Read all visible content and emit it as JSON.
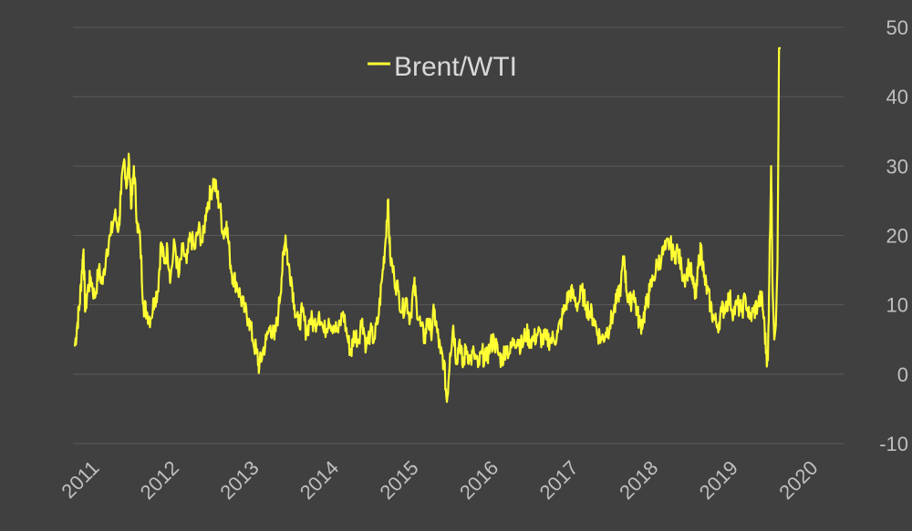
{
  "chart_data": {
    "type": "line",
    "title": "",
    "xlabel": "",
    "ylabel": "",
    "legend": {
      "position": "top-center",
      "entries": [
        "Brent/WTI"
      ]
    },
    "ylim": [
      -10,
      50
    ],
    "y_ticks": [
      "50",
      "40",
      "30",
      "20",
      "10",
      "0",
      "-10"
    ],
    "y_axis_side": "right",
    "grid": "horizontal",
    "x_ticks": [
      "2011",
      "2012",
      "2013",
      "2014",
      "2015",
      "2016",
      "2017",
      "2018",
      "2019",
      "2020"
    ],
    "colors": {
      "background": "#404040",
      "grid": "#595959",
      "series": "#ffff33",
      "text": "#bfbfbf"
    },
    "series": [
      {
        "name": "Brent/WTI",
        "points": [
          [
            2011.0,
            4
          ],
          [
            2011.03,
            7
          ],
          [
            2011.06,
            10
          ],
          [
            2011.09,
            15
          ],
          [
            2011.11,
            18
          ],
          [
            2011.13,
            9
          ],
          [
            2011.16,
            12
          ],
          [
            2011.2,
            14
          ],
          [
            2011.25,
            11
          ],
          [
            2011.3,
            15
          ],
          [
            2011.35,
            13
          ],
          [
            2011.4,
            18
          ],
          [
            2011.45,
            20
          ],
          [
            2011.5,
            23
          ],
          [
            2011.55,
            21
          ],
          [
            2011.58,
            26
          ],
          [
            2011.62,
            31
          ],
          [
            2011.65,
            27
          ],
          [
            2011.68,
            31
          ],
          [
            2011.71,
            24
          ],
          [
            2011.74,
            30
          ],
          [
            2011.78,
            22
          ],
          [
            2011.82,
            19
          ],
          [
            2011.86,
            10
          ],
          [
            2011.9,
            9
          ],
          [
            2011.95,
            8
          ],
          [
            2012.0,
            11
          ],
          [
            2012.04,
            12
          ],
          [
            2012.08,
            19
          ],
          [
            2012.12,
            16
          ],
          [
            2012.16,
            18
          ],
          [
            2012.2,
            14
          ],
          [
            2012.25,
            19
          ],
          [
            2012.3,
            14
          ],
          [
            2012.35,
            18
          ],
          [
            2012.4,
            16
          ],
          [
            2012.45,
            20
          ],
          [
            2012.5,
            18
          ],
          [
            2012.55,
            21
          ],
          [
            2012.6,
            19
          ],
          [
            2012.65,
            24
          ],
          [
            2012.7,
            26
          ],
          [
            2012.74,
            28
          ],
          [
            2012.78,
            26
          ],
          [
            2012.82,
            24
          ],
          [
            2012.86,
            20
          ],
          [
            2012.9,
            22
          ],
          [
            2012.94,
            17
          ],
          [
            2012.98,
            14
          ],
          [
            2013.03,
            13
          ],
          [
            2013.08,
            11
          ],
          [
            2013.13,
            9
          ],
          [
            2013.18,
            8
          ],
          [
            2013.23,
            5
          ],
          [
            2013.28,
            3
          ],
          [
            2013.31,
            1
          ],
          [
            2013.35,
            3
          ],
          [
            2013.4,
            5
          ],
          [
            2013.45,
            7
          ],
          [
            2013.5,
            5
          ],
          [
            2013.55,
            9
          ],
          [
            2013.59,
            14
          ],
          [
            2013.62,
            18
          ],
          [
            2013.64,
            20
          ],
          [
            2013.67,
            16
          ],
          [
            2013.71,
            14
          ],
          [
            2013.75,
            10
          ],
          [
            2013.8,
            7
          ],
          [
            2013.85,
            9
          ],
          [
            2013.9,
            6
          ],
          [
            2013.95,
            8
          ],
          [
            2014.0,
            7
          ],
          [
            2014.06,
            9
          ],
          [
            2014.12,
            6
          ],
          [
            2014.18,
            8
          ],
          [
            2014.24,
            7
          ],
          [
            2014.3,
            6
          ],
          [
            2014.36,
            9
          ],
          [
            2014.42,
            5
          ],
          [
            2014.46,
            3
          ],
          [
            2014.5,
            6
          ],
          [
            2014.55,
            5
          ],
          [
            2014.6,
            8
          ],
          [
            2014.65,
            4
          ],
          [
            2014.7,
            6
          ],
          [
            2014.75,
            5
          ],
          [
            2014.8,
            8
          ],
          [
            2014.85,
            14
          ],
          [
            2014.89,
            19
          ],
          [
            2014.92,
            25
          ],
          [
            2014.95,
            17
          ],
          [
            2015.0,
            14
          ],
          [
            2015.05,
            12
          ],
          [
            2015.1,
            9
          ],
          [
            2015.15,
            11
          ],
          [
            2015.2,
            8
          ],
          [
            2015.25,
            13
          ],
          [
            2015.28,
            10
          ],
          [
            2015.33,
            7
          ],
          [
            2015.38,
            5
          ],
          [
            2015.42,
            8
          ],
          [
            2015.46,
            6
          ],
          [
            2015.5,
            9
          ],
          [
            2015.54,
            6
          ],
          [
            2015.58,
            3
          ],
          [
            2015.62,
            2
          ],
          [
            2015.66,
            -4
          ],
          [
            2015.7,
            3
          ],
          [
            2015.74,
            7
          ],
          [
            2015.78,
            2
          ],
          [
            2015.82,
            5
          ],
          [
            2015.86,
            1
          ],
          [
            2015.9,
            4
          ],
          [
            2015.95,
            2
          ],
          [
            2016.0,
            3
          ],
          [
            2016.05,
            1
          ],
          [
            2016.1,
            3
          ],
          [
            2016.15,
            2
          ],
          [
            2016.2,
            4
          ],
          [
            2016.25,
            5
          ],
          [
            2016.3,
            3
          ],
          [
            2016.35,
            2
          ],
          [
            2016.4,
            4
          ],
          [
            2016.45,
            3
          ],
          [
            2016.5,
            5
          ],
          [
            2016.55,
            5
          ],
          [
            2016.6,
            4
          ],
          [
            2016.65,
            6
          ],
          [
            2016.7,
            5
          ],
          [
            2016.75,
            5
          ],
          [
            2016.8,
            6
          ],
          [
            2016.85,
            5
          ],
          [
            2016.9,
            5
          ],
          [
            2016.95,
            5
          ],
          [
            2017.0,
            5
          ],
          [
            2017.05,
            6
          ],
          [
            2017.1,
            8
          ],
          [
            2017.15,
            10
          ],
          [
            2017.2,
            12
          ],
          [
            2017.25,
            11
          ],
          [
            2017.3,
            10
          ],
          [
            2017.35,
            12
          ],
          [
            2017.4,
            10
          ],
          [
            2017.45,
            9
          ],
          [
            2017.5,
            8
          ],
          [
            2017.55,
            6
          ],
          [
            2017.6,
            5
          ],
          [
            2017.65,
            6
          ],
          [
            2017.7,
            7
          ],
          [
            2017.75,
            9
          ],
          [
            2017.8,
            11
          ],
          [
            2017.84,
            13
          ],
          [
            2017.88,
            17
          ],
          [
            2017.91,
            12
          ],
          [
            2017.95,
            10
          ],
          [
            2018.0,
            12
          ],
          [
            2018.04,
            9
          ],
          [
            2018.08,
            7
          ],
          [
            2018.12,
            8
          ],
          [
            2018.16,
            10
          ],
          [
            2018.2,
            12
          ],
          [
            2018.25,
            14
          ],
          [
            2018.3,
            16
          ],
          [
            2018.35,
            17
          ],
          [
            2018.4,
            18
          ],
          [
            2018.45,
            19
          ],
          [
            2018.5,
            17
          ],
          [
            2018.55,
            18
          ],
          [
            2018.6,
            15
          ],
          [
            2018.65,
            14
          ],
          [
            2018.7,
            16
          ],
          [
            2018.74,
            13
          ],
          [
            2018.78,
            11
          ],
          [
            2018.82,
            17
          ],
          [
            2018.85,
            18
          ],
          [
            2018.88,
            14
          ],
          [
            2018.92,
            12
          ],
          [
            2018.96,
            10
          ],
          [
            2019.0,
            8
          ],
          [
            2019.05,
            7
          ],
          [
            2019.1,
            9
          ],
          [
            2019.15,
            10
          ],
          [
            2019.2,
            11
          ],
          [
            2019.25,
            9
          ],
          [
            2019.3,
            10
          ],
          [
            2019.35,
            9
          ],
          [
            2019.4,
            11
          ],
          [
            2019.45,
            8
          ],
          [
            2019.5,
            9
          ],
          [
            2019.55,
            10
          ],
          [
            2019.6,
            11
          ],
          [
            2019.63,
            8
          ],
          [
            2019.66,
            3
          ],
          [
            2019.68,
            2
          ],
          [
            2019.7,
            16
          ],
          [
            2019.72,
            30
          ],
          [
            2019.74,
            12
          ],
          [
            2019.76,
            5
          ],
          [
            2019.78,
            7
          ],
          [
            2019.8,
            16
          ],
          [
            2019.82,
            47
          ],
          [
            2019.84,
            47
          ]
        ]
      }
    ]
  }
}
